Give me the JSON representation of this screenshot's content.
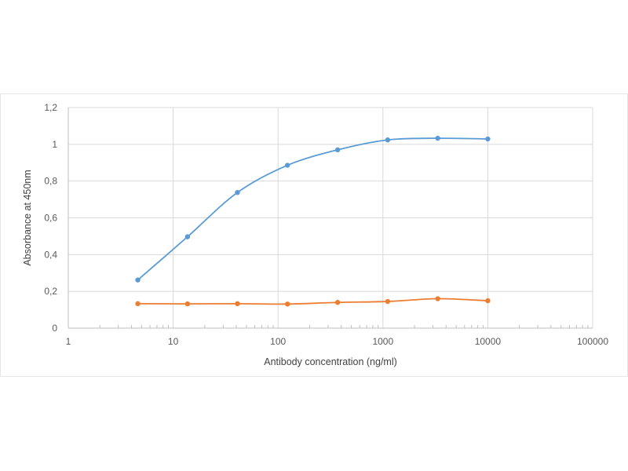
{
  "chart_data": {
    "type": "line",
    "title": "",
    "xlabel": "Antibody concentration (ng/ml)",
    "ylabel": "Absorbance at 450nm",
    "x_scale": "log",
    "xlim": [
      1,
      100000
    ],
    "ylim": [
      0,
      1.2
    ],
    "x_tick_labels": [
      "1",
      "10",
      "100",
      "1000",
      "10000",
      "100000"
    ],
    "x_tick_values": [
      1,
      10,
      100,
      1000,
      10000,
      100000
    ],
    "y_tick_labels": [
      "0",
      "0,2",
      "0,4",
      "0,6",
      "0,8",
      "1",
      "1,2"
    ],
    "y_tick_values": [
      0,
      0.2,
      0.4,
      0.6,
      0.8,
      1.0,
      1.2
    ],
    "grid": true,
    "legend": false,
    "series": [
      {
        "color": "#5b9bd5",
        "x": [
          4.6,
          13.7,
          41,
          123,
          370,
          1111,
          3333,
          10000
        ],
        "y": [
          0.262,
          0.497,
          0.738,
          0.886,
          0.97,
          1.024,
          1.033,
          1.029
        ]
      },
      {
        "color": "#ed7d31",
        "x": [
          4.6,
          13.7,
          41,
          123,
          370,
          1111,
          3333,
          10000
        ],
        "y": [
          0.133,
          0.132,
          0.133,
          0.131,
          0.14,
          0.145,
          0.16,
          0.149
        ]
      }
    ]
  }
}
